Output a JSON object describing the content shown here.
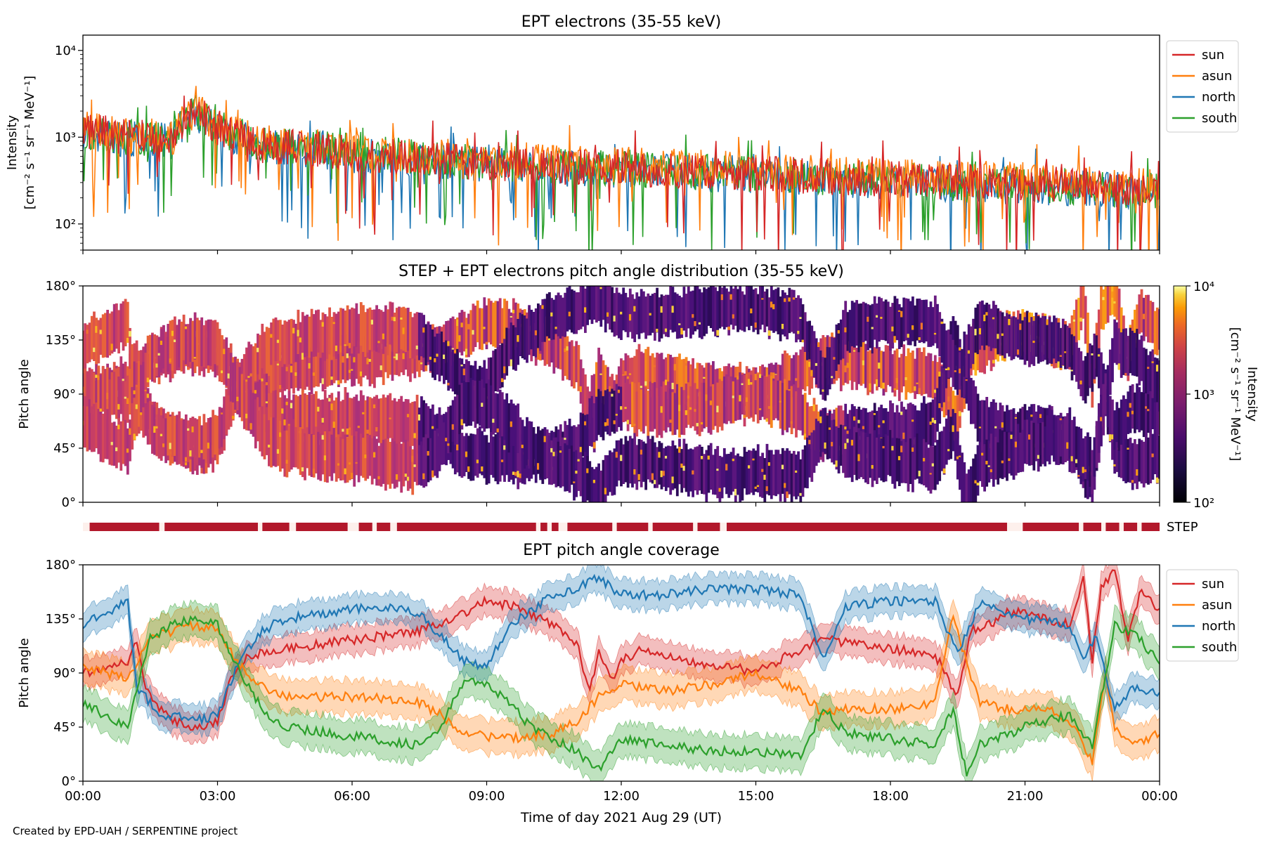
{
  "footer": {
    "credit": "Created by EPD-UAH / SERPENTINE project"
  },
  "xaxis": {
    "label": "Time of day 2021 Aug 29 (UT)",
    "range_hours": [
      0,
      24
    ],
    "ticks_hours": [
      0,
      3,
      6,
      9,
      12,
      15,
      18,
      21,
      24
    ],
    "tick_labels": [
      "00:00",
      "03:00",
      "06:00",
      "09:00",
      "12:00",
      "15:00",
      "18:00",
      "21:00",
      "00:00"
    ]
  },
  "colors": {
    "sun": "#d62728",
    "asun": "#ff7f0e",
    "north": "#1f77b4",
    "south": "#2ca02c",
    "step_bar": "#b2182b"
  },
  "chart_data": [
    {
      "id": "intensity",
      "type": "line",
      "title": "EPT electrons (35-55 keV)",
      "ylabel": "Intensity",
      "ylabel_units": "[cm⁻² s⁻¹ sr⁻¹ MeV⁻¹]",
      "yscale": "log",
      "ylim": [
        50,
        15000
      ],
      "yticks": [
        100,
        1000,
        10000
      ],
      "ytick_labels": [
        "10²",
        "10³",
        "10⁴"
      ],
      "legend": "right",
      "x_hours": [
        0,
        1,
        2,
        2.5,
        3,
        4,
        5,
        6,
        7,
        8,
        9,
        10,
        11,
        12,
        13,
        14,
        15,
        16,
        17,
        18,
        19,
        20,
        21,
        22,
        23,
        24
      ],
      "series": [
        {
          "name": "sun",
          "values": [
            1200,
            1000,
            950,
            2000,
            1300,
            800,
            750,
            650,
            600,
            550,
            500,
            480,
            450,
            450,
            420,
            400,
            380,
            360,
            340,
            330,
            310,
            300,
            290,
            280,
            260,
            250
          ]
        },
        {
          "name": "asun",
          "values": [
            1300,
            1050,
            1000,
            2100,
            1350,
            850,
            800,
            700,
            640,
            600,
            560,
            520,
            490,
            480,
            460,
            440,
            420,
            400,
            380,
            370,
            350,
            330,
            320,
            300,
            290,
            280
          ]
        },
        {
          "name": "north",
          "values": [
            1100,
            950,
            900,
            1900,
            1200,
            780,
            720,
            620,
            580,
            520,
            480,
            450,
            430,
            420,
            400,
            380,
            360,
            340,
            320,
            310,
            300,
            280,
            270,
            260,
            250,
            240
          ]
        },
        {
          "name": "south",
          "values": [
            1150,
            1000,
            980,
            1950,
            1250,
            820,
            760,
            660,
            610,
            560,
            510,
            470,
            440,
            440,
            410,
            390,
            370,
            350,
            330,
            320,
            300,
            290,
            280,
            270,
            250,
            240
          ]
        }
      ]
    },
    {
      "id": "pad",
      "type": "heatmap",
      "title": "STEP + EPT electrons pitch angle distribution (35-55 keV)",
      "ylabel": "Pitch angle",
      "ylim": [
        0,
        180
      ],
      "yticks": [
        0,
        45,
        90,
        135,
        180
      ],
      "ytick_labels": [
        "0°",
        "45°",
        "90°",
        "135°",
        "180°"
      ],
      "colorbar": {
        "label": "Intensity",
        "label_units": "[cm⁻² s⁻¹ sr⁻¹ MeV⁻¹]",
        "scale": "log",
        "range": [
          100,
          10000
        ],
        "ticks": [
          100,
          1000,
          10000
        ],
        "tick_labels": [
          "10²",
          "10³",
          "10⁴"
        ],
        "colormap": "inferno"
      }
    },
    {
      "id": "step",
      "type": "bar",
      "label": "STEP",
      "segments_hours": [
        [
          0.15,
          1.7
        ],
        [
          1.82,
          3.9
        ],
        [
          4.0,
          4.6
        ],
        [
          4.75,
          5.9
        ],
        [
          6.15,
          6.45
        ],
        [
          6.55,
          6.85
        ],
        [
          7.0,
          10.1
        ],
        [
          10.2,
          10.35
        ],
        [
          10.45,
          10.6
        ],
        [
          10.8,
          11.8
        ],
        [
          11.9,
          12.6
        ],
        [
          12.7,
          13.6
        ],
        [
          13.7,
          14.2
        ],
        [
          14.35,
          20.6
        ],
        [
          20.95,
          22.2
        ],
        [
          22.3,
          22.7
        ],
        [
          22.8,
          23.1
        ],
        [
          23.2,
          23.5
        ],
        [
          23.6,
          24.0
        ]
      ]
    },
    {
      "id": "coverage",
      "type": "line",
      "title": "EPT pitch angle coverage",
      "ylabel": "Pitch angle",
      "ylim": [
        0,
        180
      ],
      "yticks": [
        0,
        45,
        90,
        135,
        180
      ],
      "ytick_labels": [
        "0°",
        "45°",
        "90°",
        "135°",
        "180°"
      ],
      "legend": "right",
      "series": [
        {
          "name": "sun",
          "x_hours": [
            0,
            0.5,
            1.0,
            1.2,
            1.4,
            1.7,
            2.0,
            2.5,
            3.0,
            3.3,
            3.7,
            4.5,
            5.5,
            6.5,
            7.5,
            8.5,
            9.0,
            9.6,
            10.5,
            11.0,
            11.3,
            11.5,
            11.8,
            12.0,
            12.5,
            13.5,
            14.5,
            15.0,
            15.5,
            16.0,
            16.5,
            17.0,
            18.0,
            19.0,
            19.5,
            19.8,
            20.2,
            20.6,
            21.0,
            21.5,
            22.0,
            22.3,
            22.5,
            22.7,
            23.0,
            23.3,
            23.6,
            24.0
          ],
          "values": [
            90,
            95,
            100,
            115,
            80,
            60,
            50,
            45,
            50,
            85,
            105,
            110,
            115,
            120,
            125,
            140,
            150,
            145,
            130,
            115,
            75,
            110,
            85,
            100,
            110,
            100,
            95,
            90,
            100,
            110,
            120,
            115,
            110,
            105,
            70,
            125,
            130,
            140,
            140,
            135,
            130,
            170,
            100,
            160,
            175,
            120,
            160,
            140
          ],
          "band": 12
        },
        {
          "name": "asun",
          "x_hours": [
            0,
            0.5,
            1.0,
            1.5,
            2.0,
            2.5,
            3.0,
            3.5,
            4.0,
            4.5,
            5.5,
            6.5,
            7.5,
            8.0,
            8.5,
            9.5,
            10.5,
            11.0,
            11.5,
            12.0,
            13.0,
            14.0,
            15.0,
            16.0,
            16.5,
            17.0,
            18.0,
            19.0,
            19.4,
            19.6,
            20.0,
            20.6,
            21.0,
            21.5,
            22.0,
            22.3,
            22.5,
            22.8,
            23.0,
            23.5,
            24.0
          ],
          "values": [
            95,
            90,
            85,
            120,
            125,
            130,
            125,
            95,
            80,
            70,
            70,
            70,
            65,
            55,
            40,
            35,
            40,
            50,
            70,
            80,
            75,
            80,
            90,
            75,
            55,
            60,
            60,
            65,
            140,
            110,
            65,
            60,
            60,
            60,
            50,
            30,
            15,
            90,
            45,
            30,
            40
          ],
          "band": 14
        },
        {
          "name": "north",
          "x_hours": [
            0,
            0.5,
            1.0,
            1.2,
            1.4,
            1.7,
            2.0,
            2.5,
            3.0,
            3.2,
            3.5,
            4.0,
            4.5,
            5.5,
            6.5,
            7.5,
            8.5,
            9.0,
            9.5,
            10.5,
            11.0,
            11.5,
            12.0,
            13.0,
            14.0,
            15.0,
            16.0,
            16.5,
            17.0,
            18.0,
            19.0,
            19.5,
            20.0,
            21.0,
            22.0,
            22.3,
            22.6,
            23.0,
            23.5,
            24.0
          ],
          "values": [
            130,
            140,
            150,
            75,
            70,
            55,
            55,
            50,
            55,
            75,
            100,
            125,
            135,
            140,
            145,
            140,
            100,
            95,
            130,
            155,
            160,
            170,
            155,
            155,
            160,
            160,
            155,
            100,
            145,
            150,
            150,
            105,
            150,
            135,
            130,
            100,
            120,
            60,
            80,
            70
          ],
          "band": 12
        },
        {
          "name": "south",
          "x_hours": [
            0,
            0.5,
            1.0,
            1.5,
            2.0,
            2.5,
            3.0,
            3.5,
            4.0,
            4.5,
            5.5,
            6.5,
            7.5,
            8.0,
            8.5,
            9.0,
            9.5,
            10.0,
            11.0,
            11.5,
            12.0,
            13.0,
            14.0,
            15.0,
            16.0,
            16.5,
            17.0,
            18.0,
            19.0,
            19.4,
            19.7,
            20.0,
            21.0,
            22.0,
            22.5,
            23.0,
            23.5,
            24.0
          ],
          "values": [
            65,
            55,
            45,
            120,
            130,
            135,
            130,
            90,
            60,
            45,
            40,
            35,
            30,
            45,
            85,
            80,
            65,
            45,
            25,
            10,
            35,
            30,
            25,
            25,
            20,
            60,
            40,
            35,
            30,
            60,
            5,
            30,
            45,
            55,
            30,
            130,
            120,
            100
          ],
          "band": 14
        }
      ]
    }
  ]
}
